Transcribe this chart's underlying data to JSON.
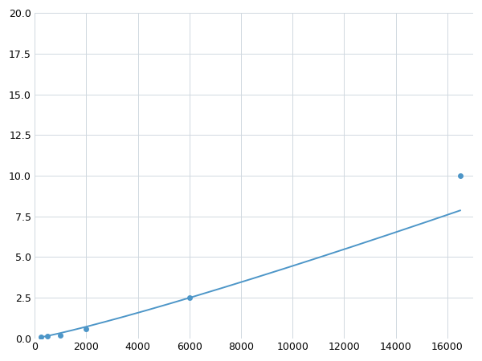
{
  "x": [
    250,
    500,
    1000,
    2000,
    6000,
    16500
  ],
  "y": [
    0.1,
    0.15,
    0.2,
    0.6,
    2.5,
    10.0
  ],
  "line_color": "#4d96c8",
  "marker_color": "#4d96c8",
  "marker_style": "o",
  "marker_size": 4,
  "linewidth": 1.4,
  "xlim": [
    0,
    17000
  ],
  "ylim": [
    0,
    20.0
  ],
  "xticks": [
    0,
    2000,
    4000,
    6000,
    8000,
    10000,
    12000,
    14000,
    16000
  ],
  "yticks": [
    0.0,
    2.5,
    5.0,
    7.5,
    10.0,
    12.5,
    15.0,
    17.5,
    20.0
  ],
  "grid_color": "#d0d8e0",
  "grid_linewidth": 0.7,
  "background_color": "#ffffff",
  "figure_bg": "#ffffff"
}
